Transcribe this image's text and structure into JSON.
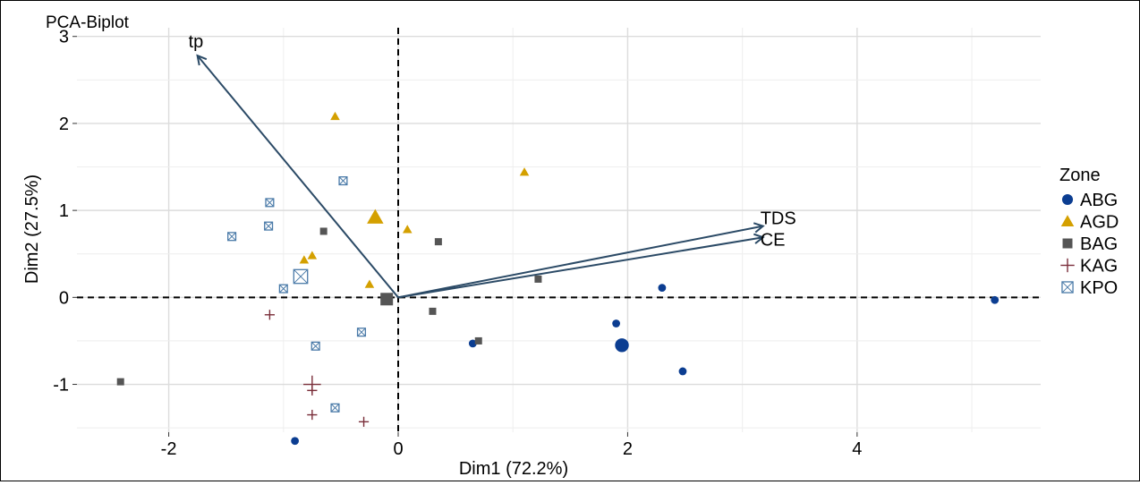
{
  "chart_data": {
    "type": "scatter",
    "subtype": "pca-biplot",
    "title": "PCA-Biplot",
    "xlabel": "Dim1 (72.2%)",
    "ylabel": "Dim2 (27.5%)",
    "xlim": [
      -2.8,
      5.6
    ],
    "ylim": [
      -1.55,
      3.1
    ],
    "x_ticks": [
      -2,
      0,
      2,
      4
    ],
    "y_ticks": [
      -1,
      0,
      1,
      2,
      3
    ],
    "grid": true,
    "reference_lines": {
      "x": 0,
      "y": 0,
      "style": "dashed"
    },
    "legend": {
      "title": "Zone",
      "placement": "right"
    },
    "series": [
      {
        "name": "ABG",
        "marker": "circle",
        "color": "#0b3d91",
        "points": [
          [
            1.9,
            -0.3
          ],
          [
            2.3,
            0.11
          ],
          [
            2.48,
            -0.85
          ],
          [
            0.65,
            -0.53
          ],
          [
            -0.9,
            -1.65
          ],
          [
            5.2,
            -0.03
          ]
        ],
        "centroid": [
          1.95,
          -0.55
        ]
      },
      {
        "name": "AGD",
        "marker": "triangle",
        "color": "#d4a000",
        "points": [
          [
            -0.55,
            2.08
          ],
          [
            1.1,
            1.44
          ],
          [
            0.08,
            0.78
          ],
          [
            -0.75,
            0.48
          ],
          [
            -0.82,
            0.43
          ],
          [
            -0.25,
            0.15
          ]
        ],
        "centroid": [
          -0.2,
          0.92
        ]
      },
      {
        "name": "BAG",
        "marker": "square",
        "color": "#555555",
        "points": [
          [
            -0.65,
            0.76
          ],
          [
            0.35,
            0.64
          ],
          [
            1.22,
            0.21
          ],
          [
            0.3,
            -0.16
          ],
          [
            0.7,
            -0.5
          ],
          [
            -2.42,
            -0.97
          ]
        ],
        "centroid": [
          -0.1,
          -0.02
        ]
      },
      {
        "name": "KAG",
        "marker": "plus",
        "color": "#7a2e3a",
        "points": [
          [
            -1.12,
            -0.2
          ],
          [
            -0.75,
            -1.07
          ],
          [
            -0.75,
            -1.35
          ],
          [
            -0.3,
            -1.43
          ]
        ],
        "centroid": [
          -0.75,
          -1.0
        ]
      },
      {
        "name": "KPO",
        "marker": "boxed-x",
        "color": "#4a7aa8",
        "points": [
          [
            -0.48,
            1.34
          ],
          [
            -1.12,
            1.09
          ],
          [
            -1.13,
            0.82
          ],
          [
            -1.45,
            0.7
          ],
          [
            -1.0,
            0.1
          ],
          [
            -0.32,
            -0.4
          ],
          [
            -0.72,
            -0.56
          ],
          [
            -0.55,
            -1.27
          ]
        ],
        "centroid": [
          -0.85,
          0.24
        ]
      }
    ],
    "vectors": [
      {
        "name": "tp",
        "x": -1.75,
        "y": 2.78
      },
      {
        "name": "TDS",
        "x": 3.18,
        "y": 0.82
      },
      {
        "name": "CE",
        "x": 3.18,
        "y": 0.69
      }
    ]
  }
}
